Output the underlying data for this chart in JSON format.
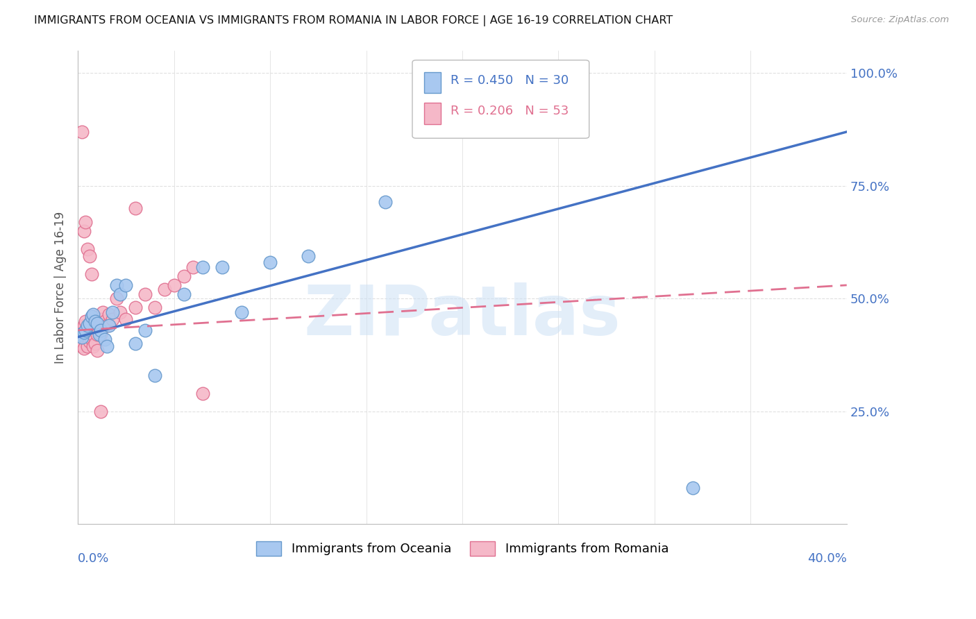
{
  "title": "IMMIGRANTS FROM OCEANIA VS IMMIGRANTS FROM ROMANIA IN LABOR FORCE | AGE 16-19 CORRELATION CHART",
  "source": "Source: ZipAtlas.com",
  "ylabel": "In Labor Force | Age 16-19",
  "xlim": [
    0.0,
    0.4
  ],
  "ylim": [
    0.0,
    1.05
  ],
  "oceania_color": "#a8c8f0",
  "oceania_edge": "#6699cc",
  "romania_color": "#f5b8c8",
  "romania_edge": "#e07090",
  "line_oceania": "#4472C4",
  "line_romania": "#e07090",
  "legend_R_oceania": "0.450",
  "legend_N_oceania": "30",
  "legend_R_romania": "0.206",
  "legend_N_romania": "53",
  "oceania_x": [
    0.001,
    0.002,
    0.003,
    0.004,
    0.005,
    0.006,
    0.007,
    0.008,
    0.009,
    0.01,
    0.011,
    0.012,
    0.014,
    0.015,
    0.016,
    0.018,
    0.02,
    0.022,
    0.025,
    0.03,
    0.035,
    0.04,
    0.055,
    0.065,
    0.075,
    0.085,
    0.1,
    0.12,
    0.16,
    0.32
  ],
  "oceania_y": [
    0.42,
    0.415,
    0.425,
    0.43,
    0.44,
    0.445,
    0.46,
    0.465,
    0.45,
    0.445,
    0.42,
    0.43,
    0.41,
    0.395,
    0.44,
    0.47,
    0.53,
    0.51,
    0.53,
    0.4,
    0.43,
    0.33,
    0.51,
    0.57,
    0.57,
    0.47,
    0.58,
    0.595,
    0.715,
    0.08
  ],
  "romania_x": [
    0.001,
    0.001,
    0.002,
    0.002,
    0.002,
    0.003,
    0.003,
    0.003,
    0.004,
    0.004,
    0.005,
    0.005,
    0.005,
    0.006,
    0.006,
    0.006,
    0.007,
    0.007,
    0.007,
    0.008,
    0.008,
    0.008,
    0.009,
    0.009,
    0.01,
    0.01,
    0.011,
    0.012,
    0.012,
    0.013,
    0.014,
    0.015,
    0.016,
    0.018,
    0.02,
    0.022,
    0.025,
    0.03,
    0.035,
    0.04,
    0.045,
    0.05,
    0.055,
    0.06,
    0.065,
    0.002,
    0.003,
    0.004,
    0.005,
    0.006,
    0.007,
    0.012,
    0.03
  ],
  "romania_y": [
    0.43,
    0.415,
    0.42,
    0.4,
    0.395,
    0.44,
    0.415,
    0.39,
    0.45,
    0.43,
    0.435,
    0.415,
    0.395,
    0.445,
    0.425,
    0.405,
    0.455,
    0.43,
    0.41,
    0.46,
    0.42,
    0.395,
    0.45,
    0.4,
    0.42,
    0.385,
    0.455,
    0.455,
    0.42,
    0.47,
    0.45,
    0.44,
    0.465,
    0.455,
    0.5,
    0.47,
    0.455,
    0.48,
    0.51,
    0.48,
    0.52,
    0.53,
    0.55,
    0.57,
    0.29,
    0.87,
    0.65,
    0.67,
    0.61,
    0.595,
    0.555,
    0.25,
    0.7
  ],
  "watermark_text": "ZIPatlas",
  "background_color": "#ffffff",
  "grid_color": "#e0e0e0"
}
